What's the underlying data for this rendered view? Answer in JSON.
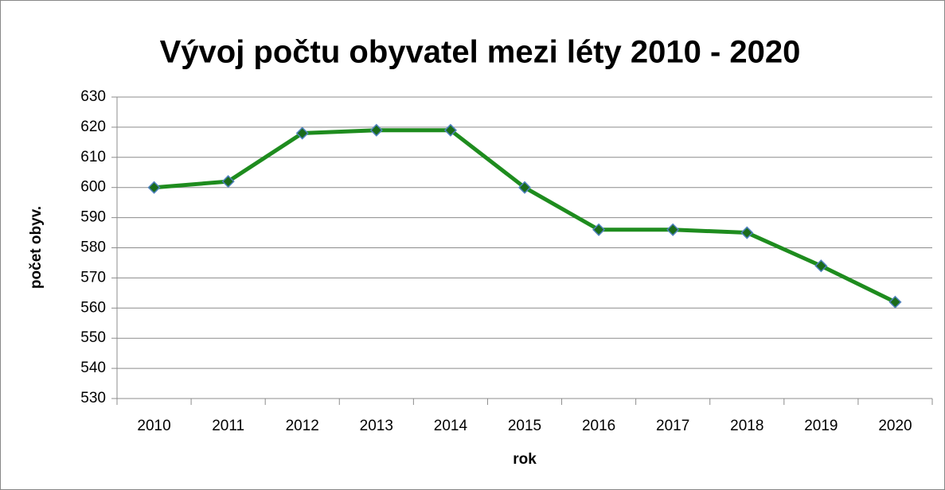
{
  "chart_data": {
    "type": "line",
    "title": "Vývoj počtu obyvatel mezi léty 2010 - 2020",
    "xlabel": "rok",
    "ylabel": "počet obyv.",
    "categories": [
      "2010",
      "2011",
      "2012",
      "2013",
      "2014",
      "2015",
      "2016",
      "2017",
      "2018",
      "2019",
      "2020"
    ],
    "series": [
      {
        "name": "počet obyv.",
        "color": "#1e8c1e",
        "marker_color": "#1a6b1a",
        "marker_edge": "#4f81bd",
        "values": [
          600,
          602,
          618,
          619,
          619,
          600,
          586,
          586,
          585,
          574,
          562
        ]
      }
    ],
    "ylim": [
      530,
      630
    ],
    "yticks": [
      530,
      540,
      550,
      560,
      570,
      580,
      590,
      600,
      610,
      620,
      630
    ],
    "grid": true
  }
}
